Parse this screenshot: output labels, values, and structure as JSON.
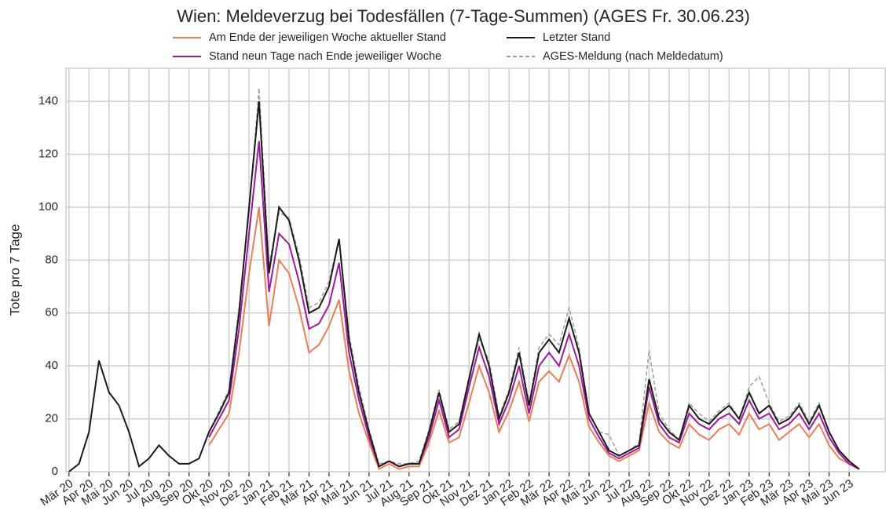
{
  "chart_data": {
    "type": "line",
    "title": "Wien: Meldeverzug bei Todesfällen (7-Tage-Summen) (AGES Fr. 30.06.23)",
    "y_label": "Tote pro 7 Tage",
    "x": [
      0,
      0.5,
      1,
      1.5,
      2,
      2.5,
      3,
      3.5,
      4,
      4.5,
      5,
      5.5,
      6,
      6.5,
      7,
      7.5,
      8,
      8.5,
      9,
      9.5,
      10,
      10.5,
      11,
      11.5,
      12,
      12.5,
      13,
      13.5,
      14,
      14.5,
      15,
      15.5,
      16,
      16.5,
      17,
      17.5,
      18,
      18.5,
      19,
      19.5,
      20,
      20.5,
      21,
      21.5,
      22,
      22.5,
      23,
      23.5,
      24,
      24.5,
      25,
      25.5,
      26,
      26.5,
      27,
      27.5,
      28,
      28.5,
      29,
      29.5,
      30,
      30.5,
      31,
      31.5,
      32,
      32.5,
      33,
      33.5,
      34,
      34.5,
      35,
      35.5,
      36,
      36.5,
      37,
      37.5,
      38,
      38.5,
      39,
      39.5
    ],
    "series": [
      {
        "name": "Am Ende der jeweiligen Woche aktueller Stand",
        "color": "#ee7d52",
        "linestyle": "solid",
        "values": [
          null,
          null,
          null,
          null,
          null,
          null,
          null,
          null,
          null,
          null,
          null,
          null,
          null,
          null,
          10,
          16,
          22,
          45,
          75,
          100,
          55,
          80,
          75,
          62,
          45,
          48,
          55,
          65,
          38,
          22,
          11,
          1,
          3,
          1,
          2,
          2,
          11,
          23,
          11,
          13,
          26,
          40,
          30,
          15,
          23,
          34,
          19,
          34,
          38,
          34,
          44,
          34,
          17,
          11,
          6,
          4,
          6,
          8,
          26,
          15,
          11,
          9,
          18,
          14,
          12,
          16,
          18,
          14,
          22,
          16,
          18,
          12,
          15,
          18,
          13,
          18,
          10,
          5,
          3,
          1
        ]
      },
      {
        "name": "Stand neun Tage nach Ende jeweiliger Woche",
        "color": "#a0189e",
        "linestyle": "solid",
        "values": [
          null,
          null,
          null,
          null,
          null,
          null,
          null,
          null,
          null,
          null,
          null,
          null,
          null,
          null,
          13,
          20,
          27,
          54,
          90,
          125,
          68,
          90,
          86,
          72,
          54,
          56,
          63,
          79,
          45,
          27,
          13,
          2,
          4,
          2,
          3,
          3,
          13,
          27,
          13,
          16,
          32,
          47,
          36,
          18,
          27,
          40,
          22,
          40,
          45,
          40,
          52,
          40,
          20,
          13,
          7,
          5,
          7,
          9,
          32,
          18,
          13,
          11,
          22,
          18,
          16,
          20,
          22,
          18,
          27,
          20,
          22,
          16,
          18,
          22,
          16,
          22,
          13,
          7,
          3,
          1
        ]
      },
      {
        "name": "Letzter Stand",
        "color": "#1a1a1a",
        "linestyle": "solid",
        "values": [
          0,
          3,
          15,
          42,
          30,
          25,
          15,
          2,
          5,
          10,
          6,
          3,
          3,
          5,
          15,
          22,
          30,
          60,
          100,
          140,
          75,
          100,
          95,
          80,
          60,
          62,
          70,
          88,
          50,
          30,
          15,
          2,
          4,
          2,
          3,
          3,
          15,
          30,
          15,
          18,
          35,
          52,
          40,
          20,
          30,
          45,
          25,
          45,
          50,
          45,
          58,
          45,
          22,
          15,
          8,
          6,
          8,
          10,
          35,
          20,
          15,
          12,
          25,
          20,
          18,
          22,
          25,
          20,
          30,
          22,
          25,
          18,
          20,
          25,
          18,
          25,
          15,
          8,
          4,
          1
        ]
      },
      {
        "name": "AGES-Meldung (nach Meldedatum)",
        "color": "#9e9e9e",
        "linestyle": "dashed",
        "values": [
          null,
          null,
          null,
          null,
          null,
          null,
          null,
          null,
          null,
          null,
          null,
          null,
          null,
          null,
          15,
          23,
          31,
          62,
          98,
          145,
          78,
          98,
          96,
          82,
          62,
          64,
          72,
          88,
          52,
          32,
          16,
          3,
          4,
          3,
          3,
          4,
          16,
          31,
          16,
          19,
          36,
          50,
          42,
          21,
          31,
          47,
          26,
          47,
          52,
          48,
          62,
          47,
          22,
          15,
          14,
          6,
          8,
          11,
          46,
          22,
          16,
          12,
          26,
          22,
          19,
          23,
          26,
          20,
          32,
          36,
          26,
          19,
          21,
          26,
          19,
          26,
          15,
          8,
          4,
          1
        ]
      }
    ],
    "xlim": [
      -0.15,
      40.8
    ],
    "xticks": [
      {
        "value": 0,
        "label": "Mär 20"
      },
      {
        "value": 1,
        "label": "Apr 20"
      },
      {
        "value": 2,
        "label": "Mai 20"
      },
      {
        "value": 3,
        "label": "Jun 20"
      },
      {
        "value": 4,
        "label": "Jul 20"
      },
      {
        "value": 5,
        "label": "Aug 20"
      },
      {
        "value": 6,
        "label": "Sep 20"
      },
      {
        "value": 7,
        "label": "Okt 20"
      },
      {
        "value": 8,
        "label": "Nov 20"
      },
      {
        "value": 9,
        "label": "Dez 20"
      },
      {
        "value": 10,
        "label": "Jan 21"
      },
      {
        "value": 11,
        "label": "Feb 21"
      },
      {
        "value": 12,
        "label": "Mär 21"
      },
      {
        "value": 13,
        "label": "Apr 21"
      },
      {
        "value": 14,
        "label": "Mai 21"
      },
      {
        "value": 15,
        "label": "Jun 21"
      },
      {
        "value": 16,
        "label": "Jul 21"
      },
      {
        "value": 17,
        "label": "Aug 21"
      },
      {
        "value": 18,
        "label": "Sep 21"
      },
      {
        "value": 19,
        "label": "Okt 21"
      },
      {
        "value": 20,
        "label": "Nov 21"
      },
      {
        "value": 21,
        "label": "Dez 21"
      },
      {
        "value": 22,
        "label": "Jan 22"
      },
      {
        "value": 23,
        "label": "Feb 22"
      },
      {
        "value": 24,
        "label": "Mär 22"
      },
      {
        "value": 25,
        "label": "Apr 22"
      },
      {
        "value": 26,
        "label": "Mai 22"
      },
      {
        "value": 27,
        "label": "Jun 22"
      },
      {
        "value": 28,
        "label": "Jul 22"
      },
      {
        "value": 29,
        "label": "Aug 22"
      },
      {
        "value": 30,
        "label": "Sep 22"
      },
      {
        "value": 31,
        "label": "Okt 22"
      },
      {
        "value": 32,
        "label": "Nov 22"
      },
      {
        "value": 33,
        "label": "Dez 22"
      },
      {
        "value": 34,
        "label": "Jan 23"
      },
      {
        "value": 35,
        "label": "Feb 23"
      },
      {
        "value": 36,
        "label": "Mär 23"
      },
      {
        "value": 37,
        "label": "Apr 23"
      },
      {
        "value": 38,
        "label": "Mai 23"
      },
      {
        "value": 39,
        "label": "Jun 23"
      }
    ],
    "ylim": [
      0,
      152.5
    ],
    "yticks": [
      0,
      20,
      40,
      60,
      80,
      100,
      120,
      140
    ],
    "grid": true,
    "legend": "top"
  }
}
